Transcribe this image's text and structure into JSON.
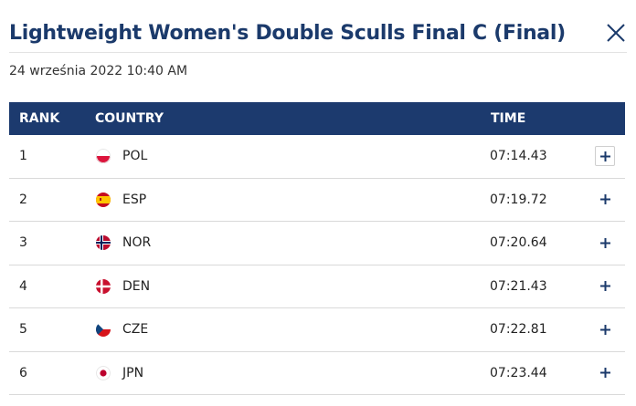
{
  "header": {
    "title": "Lightweight Women's Double Sculls Final C (Final)",
    "close_icon": "close-icon",
    "date": "24 września 2022 10:40 AM"
  },
  "table": {
    "columns": {
      "rank": "RANK",
      "country": "COUNTRY",
      "time": "TIME"
    },
    "rows": [
      {
        "rank": "1",
        "country": "POL",
        "time": "07:14.43",
        "flag": "poland-flag-icon",
        "expand_icon": "plus-icon"
      },
      {
        "rank": "2",
        "country": "ESP",
        "time": "07:19.72",
        "flag": "spain-flag-icon",
        "expand_icon": "plus-icon"
      },
      {
        "rank": "3",
        "country": "NOR",
        "time": "07:20.64",
        "flag": "norway-flag-icon",
        "expand_icon": "plus-icon"
      },
      {
        "rank": "4",
        "country": "DEN",
        "time": "07:21.43",
        "flag": "denmark-flag-icon",
        "expand_icon": "plus-icon"
      },
      {
        "rank": "5",
        "country": "CZE",
        "time": "07:22.81",
        "flag": "czechia-flag-icon",
        "expand_icon": "plus-icon"
      },
      {
        "rank": "6",
        "country": "JPN",
        "time": "07:23.44",
        "flag": "japan-flag-icon",
        "expand_icon": "plus-icon"
      }
    ]
  },
  "colors": {
    "title": "#1b3a6b",
    "header_bg": "#1c3a6e",
    "header_text": "#ffffff",
    "row_divider": "#d9d9d9"
  }
}
